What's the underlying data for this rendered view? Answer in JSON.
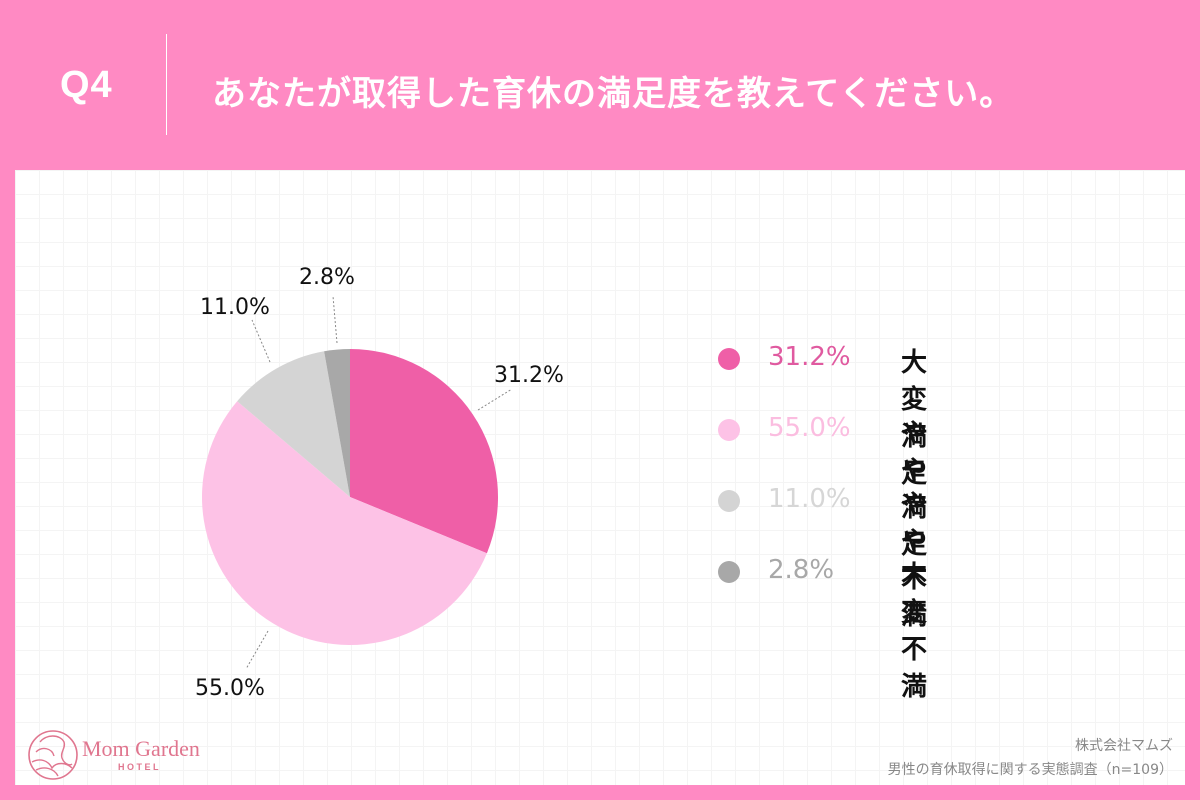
{
  "header": {
    "question_number": "Q4",
    "question_text": "あなたが取得した育休の満足度を教えてください。"
  },
  "chart_data": {
    "type": "pie",
    "title": "あなたが取得した育休の満足度を教えてください。",
    "categories": [
      "大変満足",
      "やや満足",
      "やや不満",
      "大変不満"
    ],
    "values": [
      31.2,
      55.0,
      11.0,
      2.8
    ],
    "unit": "%",
    "colors": [
      "#ef5fa7",
      "#fdc2e6",
      "#d4d4d4",
      "#a8a8a8"
    ],
    "start_angle": "12 o'clock, clockwise",
    "data_labels": [
      "31.2%",
      "55.0%",
      "11.0%",
      "2.8%"
    ],
    "legend_position": "right",
    "sample_size": "n=109"
  },
  "slice_labels": {
    "s0": "31.2%",
    "s1": "55.0%",
    "s2": "11.0%",
    "s3": "2.8%"
  },
  "legend": [
    {
      "pct": "31.2%",
      "label": "大変満足",
      "color": "#ef5fa7",
      "pct_color": "#e05aa0"
    },
    {
      "pct": "55.0%",
      "label": "やや満足",
      "color": "#fdc2e6",
      "pct_color": "#fbbde0"
    },
    {
      "pct": "11.0%",
      "label": "やや不満",
      "color": "#d4d4d4",
      "pct_color": "#d6d6d6"
    },
    {
      "pct": "2.8%",
      "label": "大変不満",
      "color": "#a8a8a8",
      "pct_color": "#a8a8a8"
    }
  ],
  "footer": {
    "logo_name": "Mom Garden",
    "logo_sub": "HOTEL",
    "company": "株式会社マムズ",
    "survey": "男性の育休取得に関する実態調査（n=109）"
  },
  "colors": {
    "frame": "#ff8ac3",
    "panel": "#ffffff",
    "logo": "#e0768f"
  }
}
